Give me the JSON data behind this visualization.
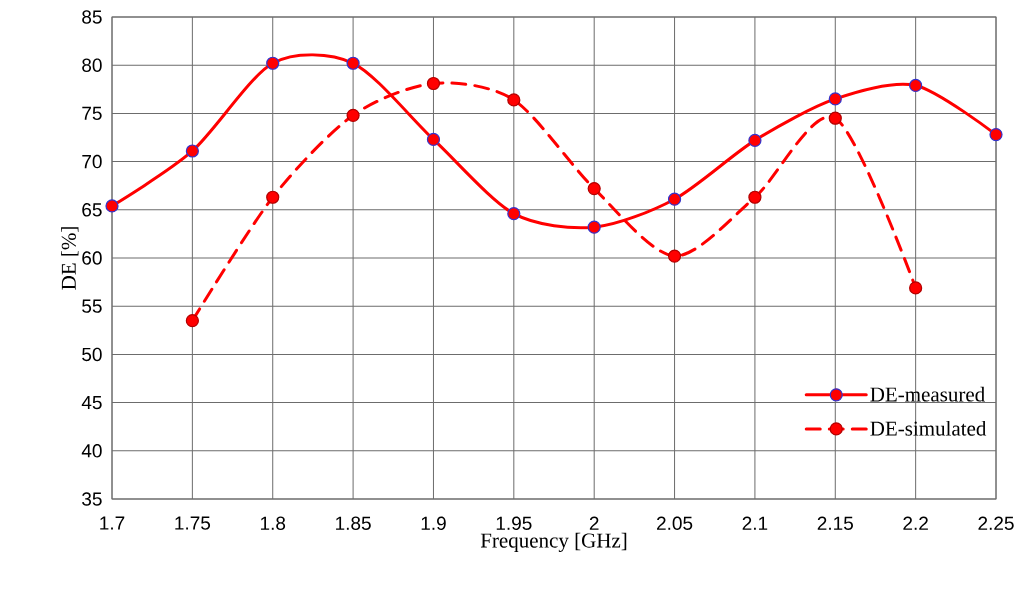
{
  "chart_data": {
    "type": "line",
    "xlabel": "Frequency [GHz]",
    "ylabel": "DE [%]",
    "x": [
      1.7,
      1.75,
      1.8,
      1.85,
      1.9,
      1.95,
      2.0,
      2.05,
      2.1,
      2.15,
      2.2,
      2.25
    ],
    "series": [
      {
        "name": "DE-measured",
        "color": "#ff0000",
        "line_style": "solid",
        "values": [
          65.4,
          71.1,
          80.2,
          80.2,
          72.3,
          64.6,
          63.2,
          66.1,
          72.2,
          76.5,
          77.9,
          72.8
        ]
      },
      {
        "name": "DE-simulated",
        "color": "#ff0000",
        "line_style": "dashed",
        "values": [
          null,
          53.5,
          66.3,
          74.8,
          78.1,
          76.4,
          67.2,
          60.2,
          66.3,
          74.5,
          56.9,
          null
        ]
      }
    ],
    "xlim": [
      1.7,
      2.25
    ],
    "ylim": [
      35,
      85
    ],
    "xticks": [
      1.7,
      1.75,
      1.8,
      1.85,
      1.9,
      1.95,
      2,
      2.05,
      2.1,
      2.15,
      2.2,
      2.25
    ],
    "yticks": [
      35,
      40,
      45,
      50,
      55,
      60,
      65,
      70,
      75,
      80,
      85
    ],
    "grid": true,
    "legend": "bottom right",
    "marker": "circle"
  }
}
